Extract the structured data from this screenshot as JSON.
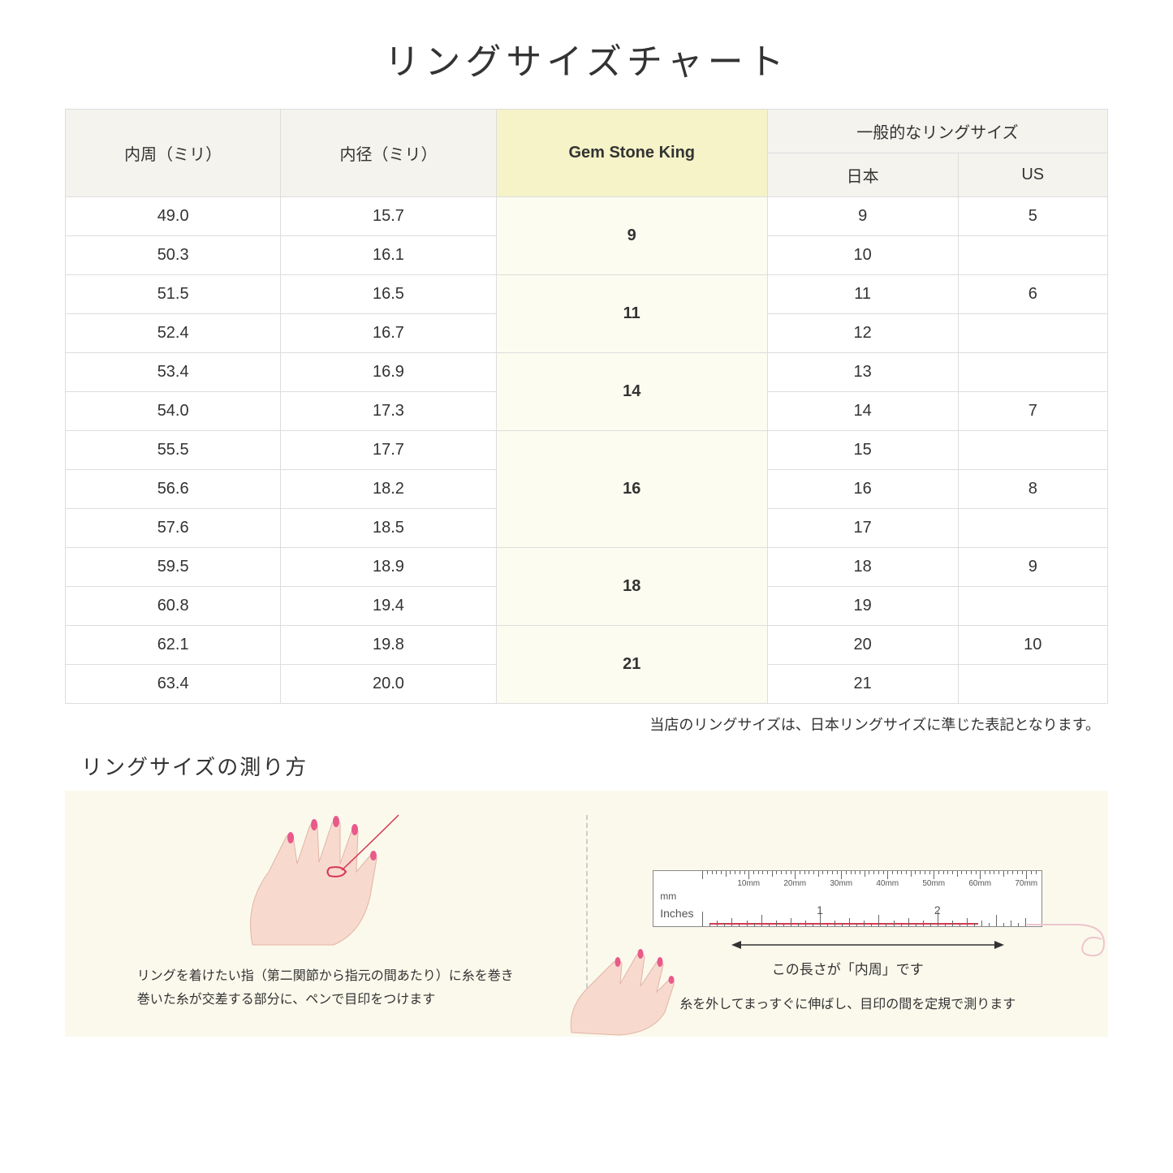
{
  "title": "リングサイズチャート",
  "headers": {
    "circumference": "内周（ミリ）",
    "diameter": "内径（ミリ）",
    "gsk": "Gem Stone King",
    "general": "一般的なリングサイズ",
    "japan": "日本",
    "us": "US"
  },
  "rows": [
    {
      "circ": "49.0",
      "diam": "15.7",
      "jp": "9",
      "us": "5"
    },
    {
      "circ": "50.3",
      "diam": "16.1",
      "jp": "10",
      "us": ""
    },
    {
      "circ": "51.5",
      "diam": "16.5",
      "jp": "11",
      "us": "6"
    },
    {
      "circ": "52.4",
      "diam": "16.7",
      "jp": "12",
      "us": ""
    },
    {
      "circ": "53.4",
      "diam": "16.9",
      "jp": "13",
      "us": ""
    },
    {
      "circ": "54.0",
      "diam": "17.3",
      "jp": "14",
      "us": "7"
    },
    {
      "circ": "55.5",
      "diam": "17.7",
      "jp": "15",
      "us": ""
    },
    {
      "circ": "56.6",
      "diam": "18.2",
      "jp": "16",
      "us": "8"
    },
    {
      "circ": "57.6",
      "diam": "18.5",
      "jp": "17",
      "us": ""
    },
    {
      "circ": "59.5",
      "diam": "18.9",
      "jp": "18",
      "us": "9"
    },
    {
      "circ": "60.8",
      "diam": "19.4",
      "jp": "19",
      "us": ""
    },
    {
      "circ": "62.1",
      "diam": "19.8",
      "jp": "20",
      "us": "10"
    },
    {
      "circ": "63.4",
      "diam": "20.0",
      "jp": "21",
      "us": ""
    }
  ],
  "gsk_groups": [
    {
      "label": "9",
      "span": 2
    },
    {
      "label": "11",
      "span": 2
    },
    {
      "label": "14",
      "span": 2
    },
    {
      "label": "16",
      "span": 3
    },
    {
      "label": "18",
      "span": 2
    },
    {
      "label": "21",
      "span": 2
    }
  ],
  "note": "当店のリングサイズは、日本リングサイズに準じた表記となります。",
  "subtitle": "リングサイズの測り方",
  "inst_left_line1": "リングを着けたい指（第二関節から指元の間あたり）に糸を巻き",
  "inst_left_line2": "巻いた糸が交差する部分に、ペンで目印をつけます",
  "inst_right_label": "この長さが「内周」です",
  "inst_right_text": "糸を外してまっすぐに伸ばし、目印の間を定規で測ります",
  "ruler": {
    "mm_unit": "mm",
    "in_unit": "Inches",
    "mm_labels": [
      "10mm",
      "20mm",
      "30mm",
      "40mm",
      "50mm",
      "60mm",
      "70mm"
    ],
    "in_labels": [
      "1",
      "2"
    ]
  },
  "colors": {
    "header_bg": "#f5f3ee",
    "highlight_bg": "#f5f3c7",
    "highlight_cell_bg": "#fcfcf0",
    "inst_bg": "#fbf9ec",
    "red": "#d63850",
    "hand": "#f8d9ce",
    "nail": "#e85a8a"
  }
}
